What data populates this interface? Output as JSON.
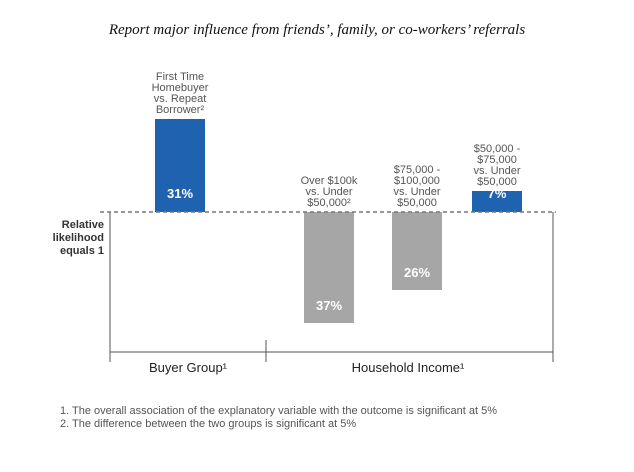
{
  "chart_data": {
    "type": "bar",
    "title": "Report major influence from friends’, family, or co-workers’ referrals",
    "baseline_label": "Relative likelihood equals 1",
    "baseline_lines": [
      "Relative",
      "likelihood",
      "equals 1"
    ],
    "groups": [
      {
        "name": "Buyer Group¹",
        "bars": [
          0
        ]
      },
      {
        "name": "Household Income¹",
        "bars": [
          1,
          2,
          3
        ]
      }
    ],
    "bars": [
      {
        "label_lines": [
          "First Time",
          "Homebuyer",
          "vs. Repeat",
          "Borrower²"
        ],
        "value": 31,
        "value_label": "31%",
        "direction": "up",
        "color": "#1f63b0"
      },
      {
        "label_lines": [
          "Over $100k",
          "vs. Under",
          "$50,000²"
        ],
        "value": -37,
        "value_label": "37%",
        "direction": "down",
        "color": "#a6a6a6"
      },
      {
        "label_lines": [
          "$75,000 -",
          "$100,000",
          "vs. Under",
          "$50,000"
        ],
        "value": -26,
        "value_label": "26%",
        "direction": "down",
        "color": "#a6a6a6"
      },
      {
        "label_lines": [
          "$50,000 -",
          "$75,000",
          "vs. Under",
          "$50,000"
        ],
        "value": 7,
        "value_label": "7%",
        "direction": "up",
        "color": "#1f63b0"
      }
    ]
  },
  "footnotes": [
    "1.  The overall association of the explanatory variable with the outcome is significant at 5%",
    "2.  The difference between the two groups is significant at 5%"
  ]
}
